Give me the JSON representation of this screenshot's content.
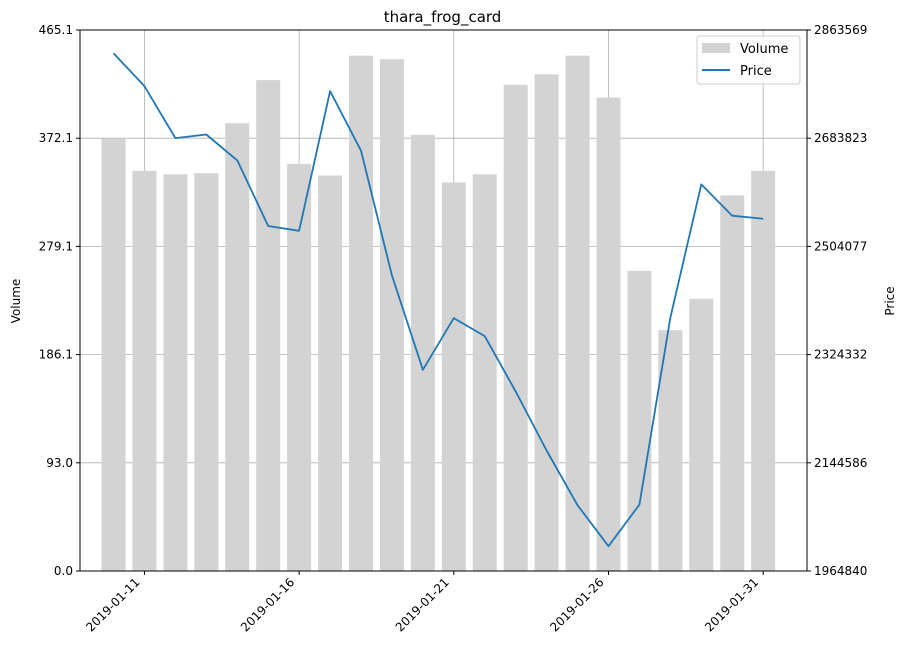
{
  "chart_data": {
    "type": "bar+line",
    "title": "thara_frog_card",
    "ylabel_left": "Volume",
    "ylabel_right": "Price",
    "x_dates": [
      "2019-01-10",
      "2019-01-11",
      "2019-01-12",
      "2019-01-13",
      "2019-01-14",
      "2019-01-15",
      "2019-01-16",
      "2019-01-17",
      "2019-01-18",
      "2019-01-19",
      "2019-01-20",
      "2019-01-21",
      "2019-01-22",
      "2019-01-23",
      "2019-01-24",
      "2019-01-25",
      "2019-01-26",
      "2019-01-27",
      "2019-01-28",
      "2019-01-29",
      "2019-01-30",
      "2019-01-31"
    ],
    "x_range": [
      "2019-01-08T22:00",
      "2019-02-01T10:00"
    ],
    "xticks": [
      "2019-01-11",
      "2019-01-16",
      "2019-01-21",
      "2019-01-26",
      "2019-01-31"
    ],
    "volume_ylim": [
      0,
      465.1
    ],
    "volume_ticks": [
      "0.0",
      "93.0",
      "186.1",
      "279.1",
      "372.1",
      "465.1"
    ],
    "price_ylim": [
      1964840,
      2863569
    ],
    "price_ticks": [
      "1964840",
      "2144586",
      "2324332",
      "2504077",
      "2683823",
      "2863569"
    ],
    "grid": true,
    "legend_position": "top-right",
    "series": [
      {
        "name": "Volume",
        "kind": "bar",
        "color": "#d3d3d3",
        "values": [
          372,
          344,
          341,
          342,
          385,
          422,
          350,
          340,
          443,
          440,
          375,
          334,
          341,
          418,
          427,
          443,
          407,
          258,
          207,
          234,
          323,
          344
        ]
      },
      {
        "name": "Price",
        "kind": "line",
        "color": "#1f77b4",
        "values": [
          2825000,
          2770000,
          2684000,
          2690000,
          2647000,
          2538000,
          2530000,
          2762000,
          2663000,
          2456000,
          2299000,
          2385000,
          2355000,
          2263000,
          2165000,
          2074000,
          2006000,
          2075000,
          2386000,
          2607000,
          2555000,
          2550000
        ]
      }
    ]
  }
}
